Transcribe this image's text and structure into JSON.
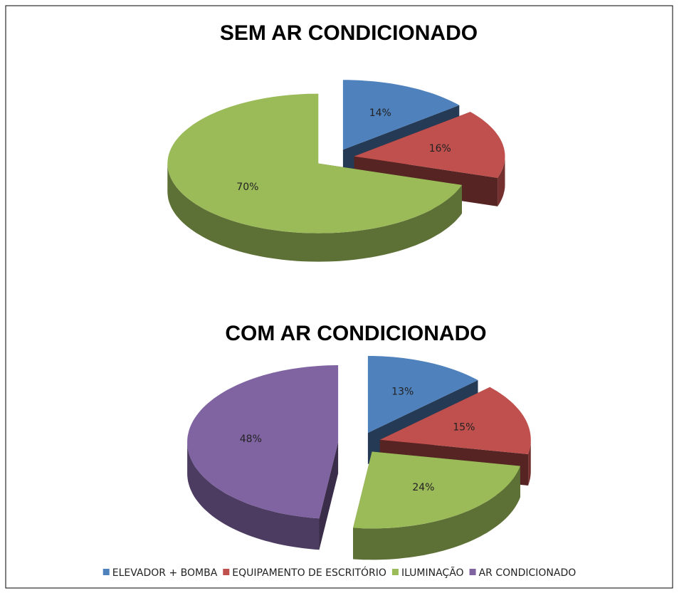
{
  "chart_data": [
    {
      "type": "pie",
      "title": "SEM AR CONDICIONADO",
      "values": [
        14,
        16,
        70
      ],
      "value_labels": [
        "14%",
        "16%",
        "70%"
      ],
      "colors": [
        "#4f81bd",
        "#c0504d",
        "#9bbb59"
      ]
    },
    {
      "type": "pie",
      "title": "COM AR CONDICIONADO",
      "categories": [
        "ELEVADOR + BOMBA",
        "EQUIPAMENTO DE ESCRITÓRIO",
        "ILUMINAÇÃO",
        "AR CONDICIONADO"
      ],
      "values": [
        13,
        15,
        24,
        48
      ],
      "value_labels": [
        "13%",
        "15%",
        "24%",
        "48%"
      ],
      "colors": [
        "#4f81bd",
        "#c0504d",
        "#9bbb59",
        "#8064a2"
      ],
      "legend": "bottom"
    }
  ]
}
